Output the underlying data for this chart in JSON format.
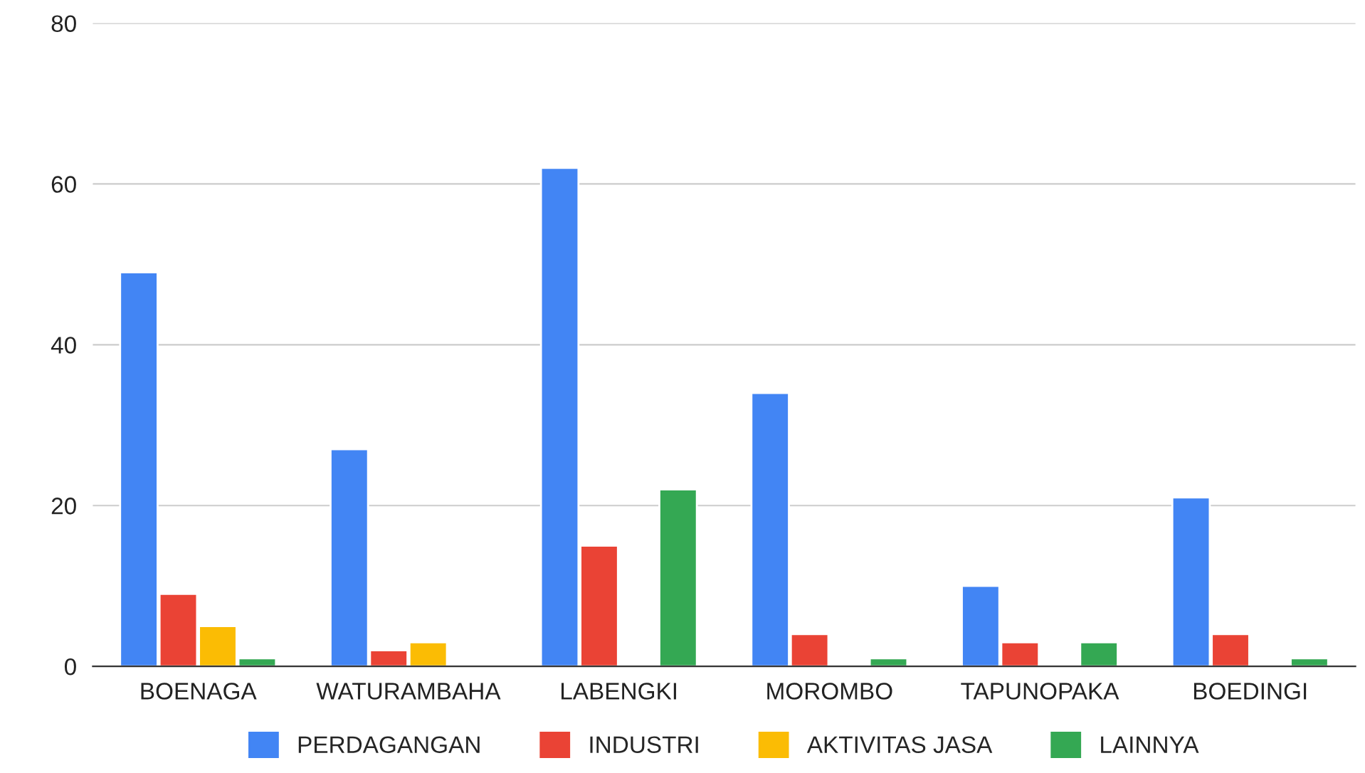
{
  "chart_data": {
    "type": "bar",
    "categories": [
      "BOENAGA",
      "WATURAMBAHA",
      "LABENGKI",
      "MOROMBO",
      "TAPUNOPAKA",
      "BOEDINGI"
    ],
    "series": [
      {
        "name": "PERDAGANGAN",
        "color": "#4285f4",
        "values": [
          49,
          27,
          62,
          34,
          10,
          21
        ]
      },
      {
        "name": "INDUSTRI",
        "color": "#ea4335",
        "values": [
          9,
          2,
          15,
          4,
          3,
          4
        ]
      },
      {
        "name": "AKTIVITAS JASA",
        "color": "#fbbc04",
        "values": [
          5,
          3,
          null,
          null,
          null,
          null
        ]
      },
      {
        "name": "LAINNYA",
        "color": "#34a853",
        "values": [
          1,
          null,
          22,
          1,
          3,
          1
        ]
      }
    ],
    "ylim": [
      0,
      80
    ],
    "yticks": [
      0,
      20,
      40,
      60,
      80
    ],
    "grid": "y",
    "legend": "bottom"
  }
}
